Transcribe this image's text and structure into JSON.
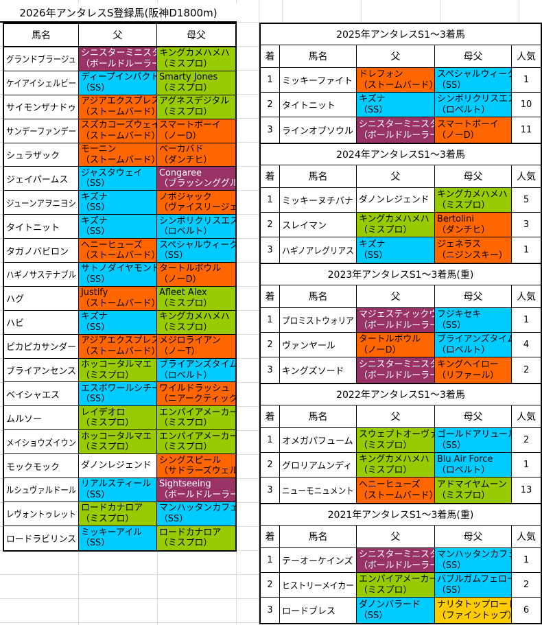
{
  "colors": {
    "plum": "#993366",
    "lime": "#99CC00",
    "orange": "#FF6600",
    "cyan": "#00CCFF",
    "gold": "#FFCC00",
    "white": "#FFFFFF",
    "border": "#000000",
    "gridline": "#DCDCDC"
  },
  "white_text_on": [
    "plum"
  ],
  "left_table": {
    "title": "2026年アンタレスS登録馬(阪神D1800m)",
    "headers": [
      "馬名",
      "父",
      "母父"
    ],
    "rows": [
      {
        "name": "グランドブラージュ",
        "sire": {
          "n": "シニスターミニスター",
          "s": "（ボールドルーラー）",
          "c": "plum"
        },
        "dam": {
          "n": "キングカメハメハ",
          "s": "（ミスプロ）",
          "c": "lime"
        }
      },
      {
        "name": "ケイアイシェルビー",
        "sire": {
          "n": "ディープインパクト",
          "s": "（SS）",
          "c": "cyan"
        },
        "dam": {
          "n": "Smarty Jones",
          "s": "（ミスプロ）",
          "c": "lime"
        }
      },
      {
        "name": "サイモンザナドゥ",
        "sire": {
          "n": "アジアエクスプレス",
          "s": "（ストームバード）",
          "c": "orange"
        },
        "dam": {
          "n": "アグネスデジタル",
          "s": "（ミスプロ）",
          "c": "lime"
        }
      },
      {
        "name": "サンデーファンデー",
        "sire": {
          "n": "スズカコーズウェイ",
          "s": "（ストームバード）",
          "c": "orange"
        },
        "dam": {
          "n": "スマートボーイ",
          "s": "（ノーD）",
          "c": "orange"
        }
      },
      {
        "name": "シュラザック",
        "sire": {
          "n": "モーニン",
          "s": "（ストームバード）",
          "c": "orange"
        },
        "dam": {
          "n": "ベーカバド",
          "s": "（ダンチヒ）",
          "c": "orange"
        }
      },
      {
        "name": "ジェイパームス",
        "sire": {
          "n": "ジャスタウェイ",
          "s": "（SS）",
          "c": "cyan"
        },
        "dam": {
          "n": "Congaree",
          "s": "（ブラッシンググル）",
          "c": "plum"
        }
      },
      {
        "name": "ジューンアヲニヨシ",
        "sire": {
          "n": "キズナ",
          "s": "（SS）",
          "c": "cyan"
        },
        "dam": {
          "n": "ノボジャック",
          "s": "（ヴァイスリージェ）",
          "c": "orange"
        }
      },
      {
        "name": "タイトニット",
        "sire": {
          "n": "キズナ",
          "s": "（SS）",
          "c": "cyan"
        },
        "dam": {
          "n": "シンボリクリスエス",
          "s": "（ロベルト）",
          "c": "cyan"
        }
      },
      {
        "name": "タガノバビロン",
        "sire": {
          "n": "ヘニーヒューズ",
          "s": "（ストームバード）",
          "c": "orange"
        },
        "dam": {
          "n": "スペシャルウィーク",
          "s": "（SS）",
          "c": "cyan"
        }
      },
      {
        "name": "ハギノサステナブル",
        "sire": {
          "n": "サトノダイヤモンド",
          "s": "（SS）",
          "c": "cyan"
        },
        "dam": {
          "n": "タートルボウル",
          "s": "（ノーD）",
          "c": "orange"
        }
      },
      {
        "name": "ハグ",
        "sire": {
          "n": "Justify",
          "s": "（ストームバード）",
          "c": "orange"
        },
        "dam": {
          "n": "Afleet Alex",
          "s": "（ミスプロ）",
          "c": "lime"
        }
      },
      {
        "name": "ハビ",
        "sire": {
          "n": "キズナ",
          "s": "（SS）",
          "c": "cyan"
        },
        "dam": {
          "n": "キングカメハメハ",
          "s": "（ミスプロ）",
          "c": "lime"
        }
      },
      {
        "name": "ピカピカサンダー",
        "sire": {
          "n": "アジアエクスプレス",
          "s": "（ストームバード）",
          "c": "orange"
        },
        "dam": {
          "n": "メジロライアン",
          "s": "（ノーT）",
          "c": "orange"
        }
      },
      {
        "name": "ブライアンセンス",
        "sire": {
          "n": "ホッコータルマエ",
          "s": "（ミスプロ）",
          "c": "lime"
        },
        "dam": {
          "n": "ブライアンズタイム",
          "s": "（ロベルト）",
          "c": "cyan"
        }
      },
      {
        "name": "ベイシャエス",
        "sire": {
          "n": "エスポワールシチー",
          "s": "（SS）",
          "c": "cyan"
        },
        "dam": {
          "n": "ワイルドラッシュ",
          "s": "（ニアークティック）",
          "c": "orange"
        }
      },
      {
        "name": "ムルソー",
        "sire": {
          "n": "レイデオロ",
          "s": "（ミスプロ）",
          "c": "lime"
        },
        "dam": {
          "n": "エンパイアメーカー",
          "s": "（ミスプロ）",
          "c": "lime"
        }
      },
      {
        "name": "メイショウズイウン",
        "sire": {
          "n": "ホッコータルマエ",
          "s": "（ミスプロ）",
          "c": "lime"
        },
        "dam": {
          "n": "エンパイアメーカー",
          "s": "（ミスプロ）",
          "c": "lime"
        }
      },
      {
        "name": "モックモック",
        "sire": {
          "n": "ダノンレジェンド",
          "s": "",
          "c": "white"
        },
        "dam": {
          "n": "シングスピール",
          "s": "（サドラーズウェル）",
          "c": "orange"
        }
      },
      {
        "name": "ルシュヴァルドール",
        "sire": {
          "n": "リアルスティール",
          "s": "（SS）",
          "c": "cyan"
        },
        "dam": {
          "n": "Sightseeing",
          "s": "（ボールドルーラー）",
          "c": "plum"
        }
      },
      {
        "name": "レヴォントゥレット",
        "sire": {
          "n": "ロードカナロア",
          "s": "（ミスプロ）",
          "c": "lime"
        },
        "dam": {
          "n": "マンハッタンカフェ",
          "s": "（SS）",
          "c": "cyan"
        }
      },
      {
        "name": "ロードラビリンス",
        "sire": {
          "n": "ミッキーアイル",
          "s": "（SS）",
          "c": "cyan"
        },
        "dam": {
          "n": "ロードカナロア",
          "s": "（ミスプロ）",
          "c": "lime"
        }
      }
    ]
  },
  "right_tables": [
    {
      "title": "2025年アンタレスS1～3着馬",
      "headers": [
        "着",
        "馬名",
        "父",
        "母父",
        "人気"
      ],
      "rows": [
        {
          "pos": "1",
          "name": "ミッキーファイト",
          "sire": {
            "n": "ドレフォン",
            "s": "（ストームバード）",
            "c": "orange"
          },
          "dam": {
            "n": "スペシャルウィーク",
            "s": "（SS）",
            "c": "cyan"
          },
          "pop": "1"
        },
        {
          "pos": "2",
          "name": "タイトニット",
          "sire": {
            "n": "キズナ",
            "s": "（SS）",
            "c": "cyan"
          },
          "dam": {
            "n": "シンボリクリスエス",
            "s": "（ロベルト）",
            "c": "cyan"
          },
          "pop": "10"
        },
        {
          "pos": "3",
          "name": "ラインオブソウル",
          "sire": {
            "n": "シニスターミニスター",
            "s": "（ボールドルーラー）",
            "c": "plum"
          },
          "dam": {
            "n": "スマートボーイ",
            "s": "（ノーD）",
            "c": "orange"
          },
          "pop": "11"
        }
      ]
    },
    {
      "title": "2024年アンタレスS1～3着馬",
      "headers": [
        "着",
        "馬名",
        "父",
        "母父",
        "人気"
      ],
      "rows": [
        {
          "pos": "1",
          "name": "ミッキーヌチバナ",
          "sire": {
            "n": "ダノンレジェンド",
            "s": "",
            "c": "white"
          },
          "dam": {
            "n": "キングカメハメハ",
            "s": "（ミスプロ）",
            "c": "lime"
          },
          "pop": "5"
        },
        {
          "pos": "2",
          "name": "スレイマン",
          "sire": {
            "n": "キングカメハメハ",
            "s": "（ミスプロ）",
            "c": "lime"
          },
          "dam": {
            "n": "Bertolini",
            "s": "（ダンチヒ）",
            "c": "orange"
          },
          "pop": "3"
        },
        {
          "pos": "3",
          "name": "ハギノアレグリアス",
          "sire": {
            "n": "キズナ",
            "s": "（SS）",
            "c": "cyan"
          },
          "dam": {
            "n": "ジェネラス",
            "s": "（ニジンスキー）",
            "c": "orange"
          },
          "pop": "1"
        }
      ]
    },
    {
      "title": "2023年アンタレスS1～3着馬(重)",
      "headers": [
        "着",
        "馬名",
        "父",
        "母父",
        "人気"
      ],
      "rows": [
        {
          "pos": "1",
          "name": "プロミストウォリア",
          "sire": {
            "n": "マジェスティックウォリアー",
            "s": "（ボールドルーラー）",
            "c": "plum"
          },
          "dam": {
            "n": "フジキセキ",
            "s": "（SS）",
            "c": "cyan"
          },
          "pop": "1"
        },
        {
          "pos": "2",
          "name": "ヴァンヤール",
          "sire": {
            "n": "タートルボウル",
            "s": "（ノーD）",
            "c": "orange"
          },
          "dam": {
            "n": "ブライアンズタイム",
            "s": "（ロベルト）",
            "c": "cyan"
          },
          "pop": "4"
        },
        {
          "pos": "3",
          "name": "キングズソード",
          "sire": {
            "n": "シニスターミニスター",
            "s": "（ボールドルーラー）",
            "c": "plum"
          },
          "dam": {
            "n": "キングヘイロー",
            "s": "（リファール）",
            "c": "orange"
          },
          "pop": "2"
        }
      ]
    },
    {
      "title": "2022年アンタレスS1～3着馬",
      "headers": [
        "着",
        "馬名",
        "父",
        "母父",
        "人気"
      ],
      "rows": [
        {
          "pos": "1",
          "name": "オメガパフューム",
          "sire": {
            "n": "スウェプトオーヴァーボード",
            "s": "（ミスプロ）",
            "c": "lime"
          },
          "dam": {
            "n": "ゴールドアリュール",
            "s": "（SS）",
            "c": "cyan"
          },
          "pop": "2"
        },
        {
          "pos": "2",
          "name": "グロリアムンディ",
          "sire": {
            "n": "キングカメハメハ",
            "s": "（ミスプロ）",
            "c": "lime"
          },
          "dam": {
            "n": "Blu Air Force",
            "s": "（ロベルト）",
            "c": "cyan"
          },
          "pop": "1"
        },
        {
          "pos": "3",
          "name": "ニューモニュメント",
          "sire": {
            "n": "ヘニーヒューズ",
            "s": "（ストームバード）",
            "c": "orange"
          },
          "dam": {
            "n": "アドマイヤムーン",
            "s": "（ミスプロ）",
            "c": "lime"
          },
          "pop": "13"
        }
      ]
    },
    {
      "title": "2021年アンタレスS1～3着馬(重)",
      "headers": [
        "着",
        "馬名",
        "父",
        "母父",
        "人気"
      ],
      "rows": [
        {
          "pos": "1",
          "name": "テーオーケインズ",
          "sire": {
            "n": "シニスターミニスター",
            "s": "（ボールドルーラー）",
            "c": "plum"
          },
          "dam": {
            "n": "マンハッタンカフェ",
            "s": "（SS）",
            "c": "cyan"
          },
          "pop": "1"
        },
        {
          "pos": "2",
          "name": "ヒストリーメイカー",
          "sire": {
            "n": "エンパイアメーカー",
            "s": "（ミスプロ）",
            "c": "lime"
          },
          "dam": {
            "n": "バブルガムフェロー",
            "s": "（SS）",
            "c": "cyan"
          },
          "pop": "2"
        },
        {
          "pos": "3",
          "name": "ロードブレス",
          "sire": {
            "n": "ダノンバラード",
            "s": "（SS）",
            "c": "cyan"
          },
          "dam": {
            "n": "ナリタトップロード",
            "s": "（ファイントップ）",
            "c": "gold"
          },
          "pop": "6"
        }
      ]
    }
  ]
}
